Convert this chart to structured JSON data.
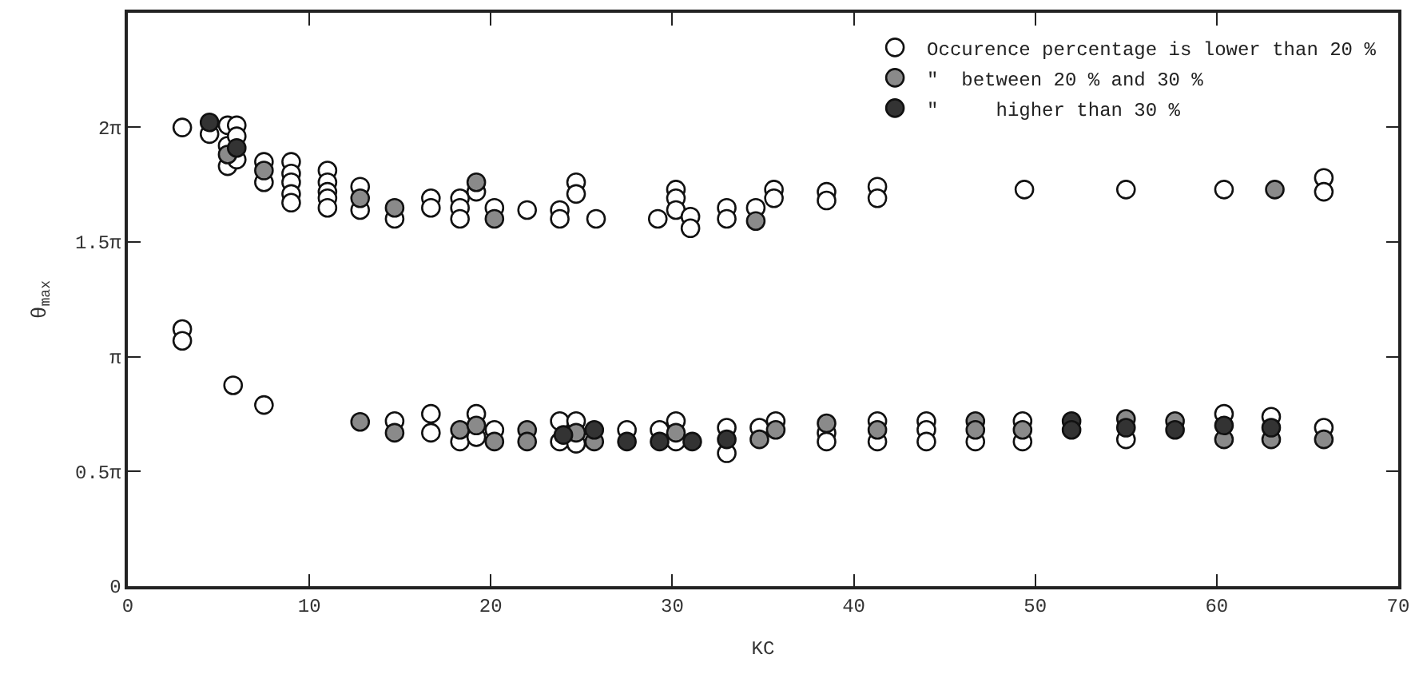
{
  "chart_data": {
    "type": "scatter",
    "xlabel": "KC",
    "ylabel": "θ$_{max}$",
    "xlim": [
      0,
      70
    ],
    "xticks": [
      0,
      10,
      20,
      30,
      40,
      50,
      60,
      70
    ],
    "ylim": [
      0,
      7.85
    ],
    "yticks": [
      0,
      {
        "value": 1.5708,
        "label": "0.5π"
      },
      {
        "value": 3.1416,
        "label": "π"
      },
      {
        "value": 4.7124,
        "label": "1.5π"
      },
      {
        "value": 6.2832,
        "label": "2π"
      }
    ],
    "legend": "top right",
    "marker": "circle",
    "series": [
      {
        "name": "Occurence percentage is lower than 20 %",
        "color": "#ffffff",
        "x": [
          3,
          3,
          3,
          4.5,
          5.5,
          5.5,
          5.5,
          6,
          6,
          6,
          7.5,
          7.5,
          9,
          9,
          9,
          9,
          9,
          11,
          11,
          11,
          11,
          11,
          12.8,
          12.8,
          14.7,
          16.7,
          16.7,
          18.3,
          18.3,
          18.3,
          19.2,
          20.2,
          22,
          23.8,
          23.8,
          24.7,
          24.7,
          25.8,
          29.2,
          30.2,
          30.2,
          30.2,
          31,
          31,
          33,
          33,
          34.6,
          35.6,
          35.6,
          38.5,
          38.5,
          41.3,
          41.3,
          49.4,
          55,
          60.4,
          65.9,
          65.9,
          5.8,
          7.5,
          14.7,
          16.7,
          16.7,
          18.3,
          19.2,
          19.2,
          20.2,
          23.8,
          23.8,
          24.7,
          24.7,
          27.5,
          29.3,
          30.2,
          30.2,
          33,
          33,
          34.8,
          35.7,
          38.5,
          38.5,
          41.3,
          41.3,
          44,
          44,
          44,
          46.7,
          49.3,
          49.3,
          55,
          60.4,
          63,
          65.9
        ],
        "values": [
          6.28,
          3.52,
          3.36,
          6.19,
          6.31,
          6.03,
          5.75,
          6.31,
          6.16,
          5.84,
          5.81,
          5.53,
          5.81,
          5.65,
          5.53,
          5.37,
          5.25,
          5.69,
          5.53,
          5.4,
          5.31,
          5.18,
          5.47,
          5.15,
          5.03,
          5.31,
          5.18,
          5.31,
          5.18,
          5.03,
          5.4,
          5.18,
          5.15,
          5.15,
          5.03,
          5.53,
          5.37,
          5.03,
          5.03,
          5.43,
          5.31,
          5.15,
          5.06,
          4.9,
          5.18,
          5.03,
          5.18,
          5.43,
          5.31,
          5.4,
          5.28,
          5.47,
          5.31,
          5.43,
          5.43,
          5.43,
          5.59,
          5.4,
          2.75,
          2.48,
          2.26,
          2.36,
          2.1,
          1.98,
          2.36,
          2.04,
          2.14,
          2.26,
          1.98,
          2.26,
          1.95,
          2.14,
          2.14,
          2.26,
          1.98,
          2.17,
          1.82,
          2.17,
          2.26,
          2.1,
          1.98,
          2.26,
          1.98,
          2.26,
          2.14,
          1.98,
          1.98,
          2.26,
          1.98,
          2.01,
          2.36,
          2.32,
          2.17
        ]
      },
      {
        "name": "\"  between 20 % and 30 %",
        "color": "#8a8a8a",
        "x": [
          5.5,
          7.5,
          12.8,
          14.7,
          19.2,
          20.2,
          34.6,
          63.2,
          12.8,
          14.7,
          18.3,
          19.2,
          20.2,
          22,
          22,
          24.7,
          25.7,
          30.2,
          34.8,
          35.7,
          38.5,
          41.3,
          46.7,
          46.7,
          49.3,
          55,
          57.7,
          60.4,
          63,
          65.9
        ],
        "values": [
          5.91,
          5.69,
          5.31,
          5.18,
          5.53,
          5.03,
          5.0,
          5.43,
          2.25,
          2.1,
          2.14,
          2.2,
          1.98,
          2.14,
          1.98,
          2.1,
          1.98,
          2.1,
          2.01,
          2.14,
          2.23,
          2.14,
          2.26,
          2.14,
          2.14,
          2.29,
          2.26,
          2.01,
          2.01,
          2.01
        ]
      },
      {
        "name": "\"     higher than 30 %",
        "color": "#333333",
        "x": [
          4.5,
          6,
          24,
          25.7,
          27.5,
          29.3,
          31.1,
          33,
          52,
          52,
          55,
          57.7,
          60.4,
          63
        ],
        "values": [
          6.35,
          6.0,
          2.07,
          2.14,
          1.98,
          1.98,
          1.98,
          2.01,
          2.26,
          2.14,
          2.17,
          2.14,
          2.2,
          2.17
        ]
      }
    ]
  }
}
